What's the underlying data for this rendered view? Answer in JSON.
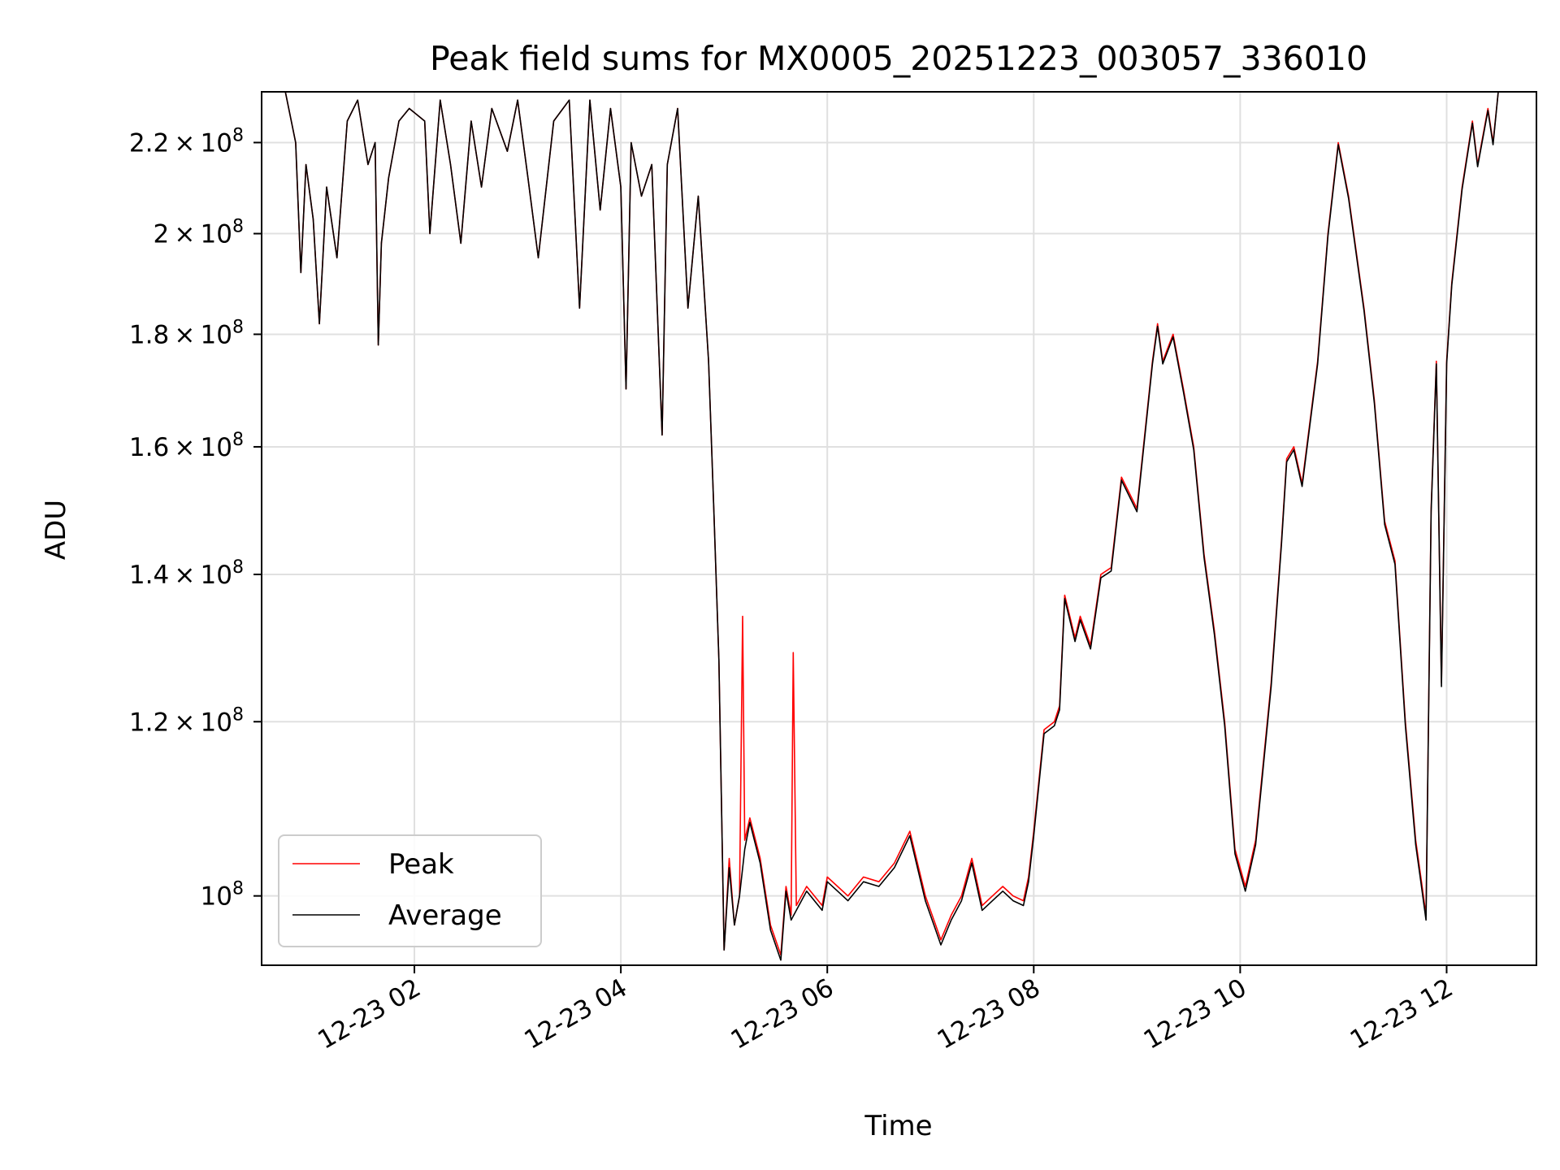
{
  "chart_data": {
    "type": "line",
    "title": "Peak field sums for MX0005_20251223_003057_336010",
    "xlabel": "Time",
    "ylabel": "ADU",
    "x_ticks": [
      "12-23 02",
      "12-23 04",
      "12-23 06",
      "12-23 08",
      "12-23 10",
      "12-23 12"
    ],
    "x_tick_hours": [
      2,
      4,
      6,
      8,
      10,
      12
    ],
    "xlim_hours": [
      0.52,
      12.87
    ],
    "y_scale": "log",
    "ylim": [
      93000000,
      232000000
    ],
    "y_ticks": [
      {
        "value": 100000000,
        "mantissa": "",
        "base": "10",
        "exp": "8"
      },
      {
        "value": 120000000,
        "mantissa": "1.2",
        "base": "10",
        "exp": "8"
      },
      {
        "value": 140000000,
        "mantissa": "1.4",
        "base": "10",
        "exp": "8"
      },
      {
        "value": 160000000,
        "mantissa": "1.6",
        "base": "10",
        "exp": "8"
      },
      {
        "value": 180000000,
        "mantissa": "1.8",
        "base": "10",
        "exp": "8"
      },
      {
        "value": 200000000,
        "mantissa": "2",
        "base": "10",
        "exp": "8"
      },
      {
        "value": 220000000,
        "mantissa": "2.2",
        "base": "10",
        "exp": "8"
      }
    ],
    "grid": true,
    "legend_position": "lower-left",
    "series": [
      {
        "name": "Peak",
        "color": "#ff0000",
        "points": [
          [
            0.52,
            232
          ],
          [
            0.75,
            232
          ],
          [
            0.85,
            220
          ],
          [
            0.9,
            192
          ],
          [
            0.95,
            215
          ],
          [
            1.02,
            203
          ],
          [
            1.08,
            182
          ],
          [
            1.15,
            210
          ],
          [
            1.25,
            195
          ],
          [
            1.35,
            225
          ],
          [
            1.45,
            230
          ],
          [
            1.55,
            215
          ],
          [
            1.62,
            220
          ],
          [
            1.65,
            178
          ],
          [
            1.68,
            198
          ],
          [
            1.75,
            212
          ],
          [
            1.85,
            225
          ],
          [
            1.95,
            228
          ],
          [
            2.1,
            225
          ],
          [
            2.15,
            200
          ],
          [
            2.25,
            230
          ],
          [
            2.35,
            215
          ],
          [
            2.45,
            198
          ],
          [
            2.55,
            225
          ],
          [
            2.65,
            210
          ],
          [
            2.75,
            228
          ],
          [
            2.9,
            218
          ],
          [
            3.0,
            230
          ],
          [
            3.1,
            212
          ],
          [
            3.2,
            195
          ],
          [
            3.35,
            225
          ],
          [
            3.5,
            230
          ],
          [
            3.6,
            185
          ],
          [
            3.7,
            230
          ],
          [
            3.8,
            205
          ],
          [
            3.9,
            228
          ],
          [
            4.0,
            210
          ],
          [
            4.05,
            170
          ],
          [
            4.1,
            220
          ],
          [
            4.2,
            208
          ],
          [
            4.3,
            215
          ],
          [
            4.4,
            162
          ],
          [
            4.45,
            215
          ],
          [
            4.55,
            228
          ],
          [
            4.65,
            185
          ],
          [
            4.75,
            208
          ],
          [
            4.85,
            175
          ],
          [
            4.9,
            150
          ],
          [
            4.95,
            128
          ],
          [
            5.0,
            94.5
          ],
          [
            5.05,
            104
          ],
          [
            5.1,
            97
          ],
          [
            5.15,
            100
          ],
          [
            5.18,
            134
          ],
          [
            5.2,
            106
          ],
          [
            5.25,
            108.5
          ],
          [
            5.35,
            104
          ],
          [
            5.45,
            97
          ],
          [
            5.55,
            94
          ],
          [
            5.6,
            101
          ],
          [
            5.65,
            98
          ],
          [
            5.67,
            129
          ],
          [
            5.7,
            99
          ],
          [
            5.8,
            101
          ],
          [
            5.95,
            99
          ],
          [
            6.0,
            102
          ],
          [
            6.1,
            101
          ],
          [
            6.2,
            100
          ],
          [
            6.35,
            102
          ],
          [
            6.5,
            101.5
          ],
          [
            6.65,
            103.5
          ],
          [
            6.8,
            107
          ],
          [
            6.95,
            100
          ],
          [
            7.05,
            97
          ],
          [
            7.1,
            95.5
          ],
          [
            7.2,
            98
          ],
          [
            7.3,
            100
          ],
          [
            7.4,
            104
          ],
          [
            7.5,
            99
          ],
          [
            7.6,
            100
          ],
          [
            7.7,
            101
          ],
          [
            7.8,
            100
          ],
          [
            7.9,
            99.5
          ],
          [
            7.95,
            102
          ],
          [
            8.0,
            107
          ],
          [
            8.1,
            119
          ],
          [
            8.2,
            120
          ],
          [
            8.25,
            122
          ],
          [
            8.3,
            137
          ],
          [
            8.4,
            131
          ],
          [
            8.45,
            134
          ],
          [
            8.55,
            130
          ],
          [
            8.65,
            140
          ],
          [
            8.75,
            141
          ],
          [
            8.85,
            155
          ],
          [
            9.0,
            150
          ],
          [
            9.15,
            175
          ],
          [
            9.2,
            182
          ],
          [
            9.25,
            175
          ],
          [
            9.35,
            180
          ],
          [
            9.45,
            170
          ],
          [
            9.55,
            160
          ],
          [
            9.65,
            143
          ],
          [
            9.75,
            132
          ],
          [
            9.85,
            120
          ],
          [
            9.95,
            105
          ],
          [
            10.05,
            101
          ],
          [
            10.15,
            106
          ],
          [
            10.3,
            125
          ],
          [
            10.4,
            145
          ],
          [
            10.45,
            158
          ],
          [
            10.52,
            160
          ],
          [
            10.6,
            154
          ],
          [
            10.75,
            175
          ],
          [
            10.85,
            200
          ],
          [
            10.95,
            220
          ],
          [
            11.05,
            208
          ],
          [
            11.2,
            185
          ],
          [
            11.3,
            168
          ],
          [
            11.4,
            148
          ],
          [
            11.5,
            142
          ],
          [
            11.6,
            120
          ],
          [
            11.7,
            106
          ],
          [
            11.75,
            102
          ],
          [
            11.8,
            98
          ],
          [
            11.85,
            150
          ],
          [
            11.9,
            175
          ],
          [
            11.95,
            125
          ],
          [
            12.0,
            175
          ],
          [
            12.05,
            190
          ],
          [
            12.15,
            210
          ],
          [
            12.25,
            225
          ],
          [
            12.3,
            215
          ],
          [
            12.4,
            228
          ],
          [
            12.45,
            220
          ],
          [
            12.5,
            232
          ]
        ]
      },
      {
        "name": "Average",
        "color": "#000000",
        "points": [
          [
            0.52,
            232
          ],
          [
            0.75,
            232
          ],
          [
            0.85,
            220
          ],
          [
            0.9,
            192
          ],
          [
            0.95,
            215
          ],
          [
            1.02,
            203
          ],
          [
            1.08,
            182
          ],
          [
            1.15,
            210
          ],
          [
            1.25,
            195
          ],
          [
            1.35,
            225
          ],
          [
            1.45,
            230
          ],
          [
            1.55,
            215
          ],
          [
            1.62,
            220
          ],
          [
            1.65,
            178
          ],
          [
            1.68,
            198
          ],
          [
            1.75,
            212
          ],
          [
            1.85,
            225
          ],
          [
            1.95,
            228
          ],
          [
            2.1,
            225
          ],
          [
            2.15,
            200
          ],
          [
            2.25,
            230
          ],
          [
            2.35,
            215
          ],
          [
            2.45,
            198
          ],
          [
            2.55,
            225
          ],
          [
            2.65,
            210
          ],
          [
            2.75,
            228
          ],
          [
            2.9,
            218
          ],
          [
            3.0,
            230
          ],
          [
            3.1,
            212
          ],
          [
            3.2,
            195
          ],
          [
            3.35,
            225
          ],
          [
            3.5,
            230
          ],
          [
            3.6,
            185
          ],
          [
            3.7,
            230
          ],
          [
            3.8,
            205
          ],
          [
            3.9,
            228
          ],
          [
            4.0,
            210
          ],
          [
            4.05,
            170
          ],
          [
            4.1,
            220
          ],
          [
            4.2,
            208
          ],
          [
            4.3,
            215
          ],
          [
            4.4,
            162
          ],
          [
            4.45,
            215
          ],
          [
            4.55,
            228
          ],
          [
            4.65,
            185
          ],
          [
            4.75,
            208
          ],
          [
            4.85,
            175
          ],
          [
            4.9,
            150
          ],
          [
            4.95,
            128
          ],
          [
            5.0,
            94.5
          ],
          [
            5.05,
            103
          ],
          [
            5.1,
            97
          ],
          [
            5.15,
            100
          ],
          [
            5.2,
            105
          ],
          [
            5.25,
            108
          ],
          [
            5.35,
            103.5
          ],
          [
            5.45,
            96.5
          ],
          [
            5.55,
            93.5
          ],
          [
            5.6,
            100.5
          ],
          [
            5.65,
            97.5
          ],
          [
            5.7,
            98.5
          ],
          [
            5.8,
            100.5
          ],
          [
            5.95,
            98.5
          ],
          [
            6.0,
            101.5
          ],
          [
            6.1,
            100.5
          ],
          [
            6.2,
            99.5
          ],
          [
            6.35,
            101.5
          ],
          [
            6.5,
            101
          ],
          [
            6.65,
            103
          ],
          [
            6.8,
            106.5
          ],
          [
            6.95,
            99.5
          ],
          [
            7.05,
            96.5
          ],
          [
            7.1,
            95
          ],
          [
            7.2,
            97.5
          ],
          [
            7.3,
            99.5
          ],
          [
            7.4,
            103.5
          ],
          [
            7.5,
            98.5
          ],
          [
            7.6,
            99.5
          ],
          [
            7.7,
            100.5
          ],
          [
            7.8,
            99.5
          ],
          [
            7.9,
            99
          ],
          [
            7.95,
            101.5
          ],
          [
            8.0,
            106.5
          ],
          [
            8.1,
            118.5
          ],
          [
            8.2,
            119.5
          ],
          [
            8.25,
            121.5
          ],
          [
            8.3,
            136.5
          ],
          [
            8.4,
            130.5
          ],
          [
            8.45,
            133.5
          ],
          [
            8.55,
            129.5
          ],
          [
            8.65,
            139.5
          ],
          [
            8.75,
            140.5
          ],
          [
            8.85,
            154.5
          ],
          [
            9.0,
            149.5
          ],
          [
            9.15,
            174.5
          ],
          [
            9.2,
            181.5
          ],
          [
            9.25,
            174.5
          ],
          [
            9.35,
            179.5
          ],
          [
            9.45,
            169.5
          ],
          [
            9.55,
            159.5
          ],
          [
            9.65,
            142.5
          ],
          [
            9.75,
            131.5
          ],
          [
            9.85,
            119.5
          ],
          [
            9.95,
            104.5
          ],
          [
            10.05,
            100.5
          ],
          [
            10.15,
            105.5
          ],
          [
            10.3,
            124.5
          ],
          [
            10.4,
            144.5
          ],
          [
            10.45,
            157.5
          ],
          [
            10.52,
            159.5
          ],
          [
            10.6,
            153.5
          ],
          [
            10.75,
            174.5
          ],
          [
            10.85,
            199.5
          ],
          [
            10.95,
            219.5
          ],
          [
            11.05,
            207.5
          ],
          [
            11.2,
            184.5
          ],
          [
            11.3,
            167.5
          ],
          [
            11.4,
            147.5
          ],
          [
            11.5,
            141.5
          ],
          [
            11.6,
            119.5
          ],
          [
            11.7,
            105.5
          ],
          [
            11.75,
            101.5
          ],
          [
            11.8,
            97.5
          ],
          [
            11.85,
            149.5
          ],
          [
            11.9,
            174.5
          ],
          [
            11.95,
            124.5
          ],
          [
            12.0,
            174.5
          ],
          [
            12.05,
            189.5
          ],
          [
            12.15,
            209.5
          ],
          [
            12.25,
            224.5
          ],
          [
            12.3,
            214.5
          ],
          [
            12.4,
            227.5
          ],
          [
            12.45,
            219.5
          ],
          [
            12.5,
            232
          ]
        ]
      }
    ],
    "y_value_unit": "1e6 ADU",
    "x_value_unit": "hours after 2025-12-23 00:00"
  }
}
